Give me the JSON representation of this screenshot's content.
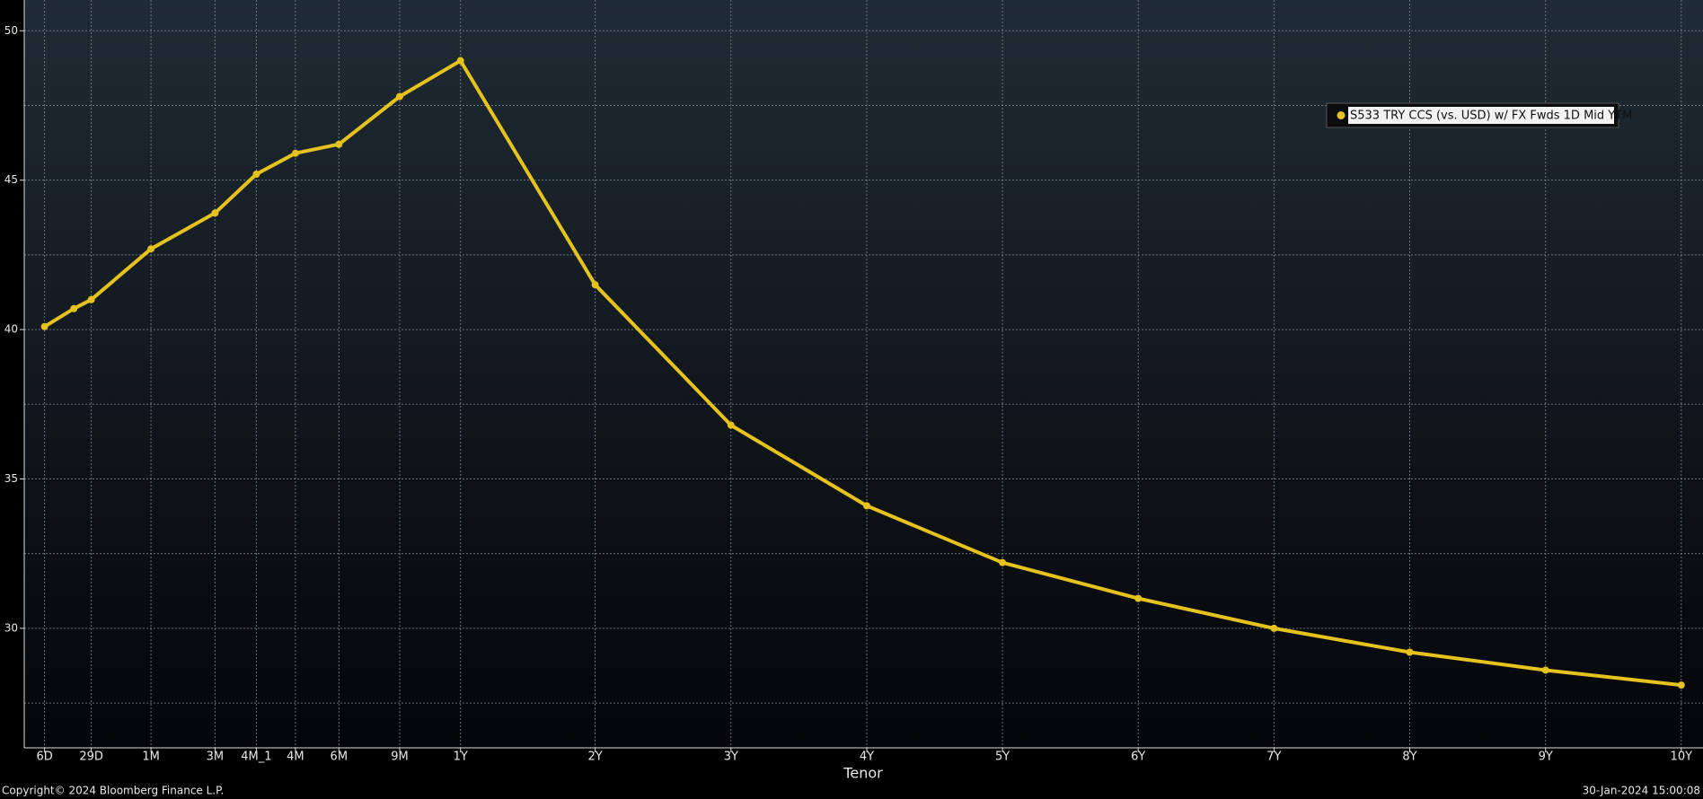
{
  "chart_data": {
    "type": "line",
    "x_label": "Tenor",
    "categories": [
      "6D",
      null,
      "29D",
      "1M",
      "3M",
      "4M_1",
      "4M",
      "6M",
      "9M",
      "1Y",
      "2Y",
      "3Y",
      "4Y",
      "5Y",
      "6Y",
      "7Y",
      "8Y",
      "9Y",
      "10Y"
    ],
    "series": [
      {
        "name": "S533 TRY CCS (vs. USD) w/ FX Fwds 1D Mid YTM",
        "color": "#e6c21e",
        "values": [
          40.1,
          40.7,
          41.0,
          42.7,
          43.9,
          45.2,
          45.9,
          46.2,
          47.8,
          49.0,
          41.5,
          36.8,
          34.1,
          32.2,
          31.0,
          30.0,
          29.2,
          28.6,
          28.1
        ]
      }
    ],
    "ylim": [
      26,
      51
    ],
    "yticks": [
      30,
      35,
      40,
      45,
      50
    ],
    "y_minor_gridlines": [
      27.5,
      32.5,
      37.5,
      42.5,
      47.5
    ],
    "grid": true,
    "legend": "upper right",
    "footer_left": "Copyright© 2024 Bloomberg Finance L.P.",
    "footer_right": "30-Jan-2024 15:00:08"
  }
}
